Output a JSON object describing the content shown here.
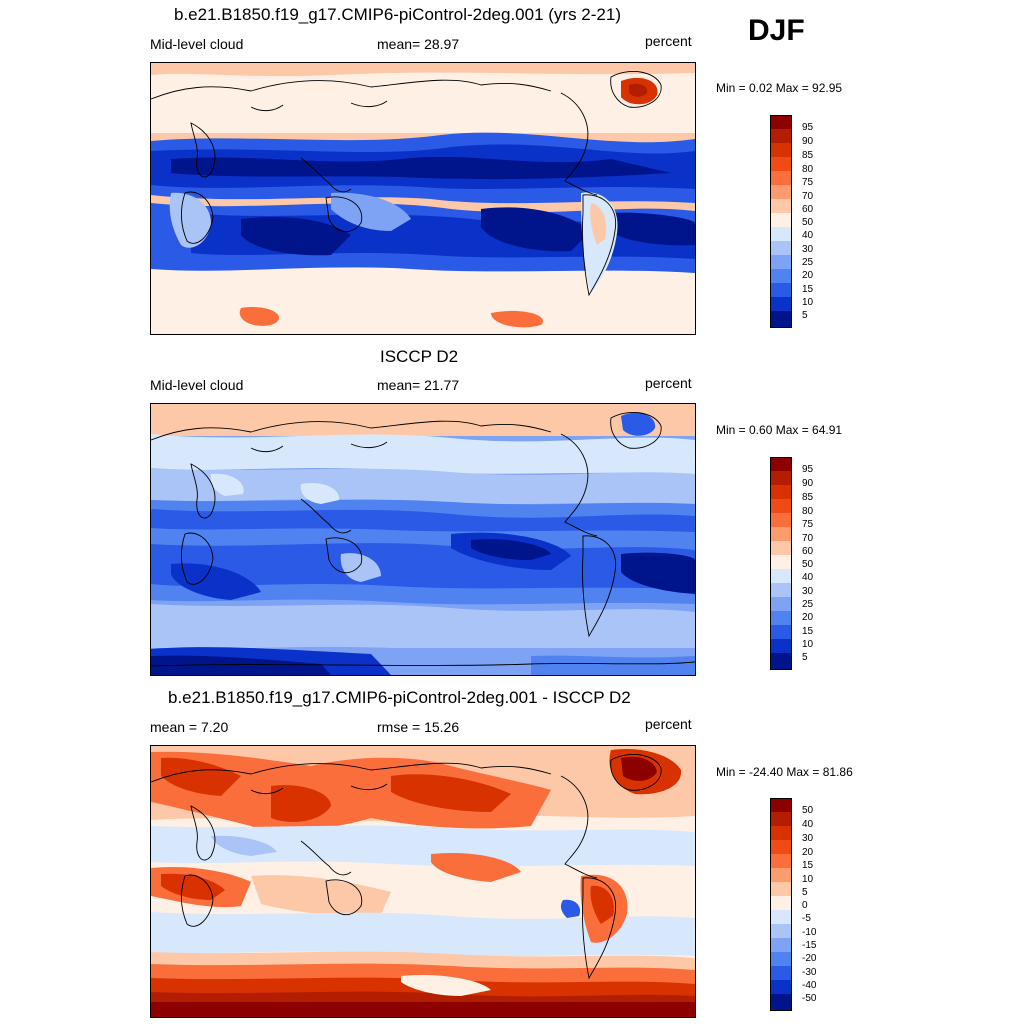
{
  "season": "DJF",
  "panels": [
    {
      "title": "b.e21.B1850.f19_g17.CMIP6-piControl-2deg.001 (yrs 2-21)",
      "left_label": "Mid-level cloud",
      "center_label": "mean=  28.97",
      "right_label": "percent",
      "minmax": "Min =   0.02 Max =  92.95",
      "levels": [
        "95",
        "90",
        "85",
        "80",
        "75",
        "70",
        "60",
        "50",
        "40",
        "30",
        "25",
        "20",
        "15",
        "10",
        "5"
      ]
    },
    {
      "title": "ISCCP D2",
      "left_label": "Mid-level cloud",
      "center_label": "mean=  21.77",
      "right_label": "percent",
      "minmax": "Min =   0.60 Max =  64.91",
      "levels": [
        "95",
        "90",
        "85",
        "80",
        "75",
        "70",
        "60",
        "50",
        "40",
        "30",
        "25",
        "20",
        "15",
        "10",
        "5"
      ]
    },
    {
      "title": "b.e21.B1850.f19_g17.CMIP6-piControl-2deg.001 - ISCCP D2",
      "left_label": "mean =   7.20",
      "center_label": "rmse =  15.26",
      "right_label": "percent",
      "minmax": "Min = -24.40 Max =  81.86",
      "levels": [
        "50",
        "40",
        "30",
        "20",
        "15",
        "10",
        "5",
        "0",
        "-5",
        "-10",
        "-15",
        "-20",
        "-30",
        "-40",
        "-50"
      ]
    }
  ],
  "colorbar_colors": [
    "#8c0000",
    "#b41e00",
    "#d83200",
    "#f04b14",
    "#fa6e3c",
    "#fc9c6e",
    "#fdc8a8",
    "#fff0e6",
    "#d8e8fc",
    "#aac4f8",
    "#7ea2f4",
    "#5082f0",
    "#2a5ae6",
    "#0a32c8",
    "#00148c"
  ],
  "chart_data": [
    {
      "type": "heatmap",
      "title": "b.e21.B1850.f19_g17.CMIP6-piControl-2deg.001 (yrs 2-21)",
      "variable": "Mid-level cloud",
      "units": "percent",
      "mean": 28.97,
      "min": 0.02,
      "max": 92.95,
      "contour_levels": [
        5,
        10,
        15,
        20,
        25,
        30,
        40,
        50,
        60,
        70,
        75,
        80,
        85,
        90,
        95
      ]
    },
    {
      "type": "heatmap",
      "title": "ISCCP D2",
      "variable": "Mid-level cloud",
      "units": "percent",
      "mean": 21.77,
      "min": 0.6,
      "max": 64.91,
      "contour_levels": [
        5,
        10,
        15,
        20,
        25,
        30,
        40,
        50,
        60,
        70,
        75,
        80,
        85,
        90,
        95
      ]
    },
    {
      "type": "heatmap",
      "title": "b.e21.B1850.f19_g17.CMIP6-piControl-2deg.001 - ISCCP D2",
      "units": "percent",
      "mean": 7.2,
      "rmse": 15.26,
      "min": -24.4,
      "max": 81.86,
      "contour_levels": [
        -50,
        -40,
        -30,
        -20,
        -15,
        -10,
        -5,
        0,
        5,
        10,
        15,
        20,
        30,
        40,
        50
      ]
    }
  ]
}
